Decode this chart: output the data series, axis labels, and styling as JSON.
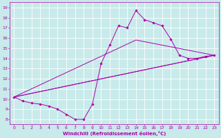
{
  "xlabel": "Windchill (Refroidissement éolien,°C)",
  "background_color": "#c8eaea",
  "grid_color": "#ffffff",
  "line_color": "#aa00aa",
  "xlim": [
    -0.5,
    23.5
  ],
  "ylim": [
    7.5,
    19.5
  ],
  "xticks": [
    0,
    1,
    2,
    3,
    4,
    5,
    6,
    7,
    8,
    9,
    10,
    11,
    12,
    13,
    14,
    15,
    16,
    17,
    18,
    19,
    20,
    21,
    22,
    23
  ],
  "yticks": [
    8,
    9,
    10,
    11,
    12,
    13,
    14,
    15,
    16,
    17,
    18,
    19
  ],
  "series": [
    {
      "x": [
        0,
        1,
        2,
        3,
        4,
        5,
        6,
        7,
        8,
        9,
        10,
        11,
        12,
        13,
        14,
        15,
        16,
        17,
        18,
        19,
        20,
        21,
        22,
        23
      ],
      "y": [
        10.2,
        9.8,
        9.6,
        9.5,
        9.3,
        9.0,
        8.5,
        8.0,
        8.0,
        9.5,
        13.5,
        15.3,
        17.2,
        17.0,
        18.7,
        17.8,
        17.5,
        17.2,
        15.9,
        14.3,
        14.0,
        14.0,
        14.2,
        14.3
      ],
      "marker": "D",
      "markersize": 1.8
    },
    {
      "x": [
        0,
        23
      ],
      "y": [
        10.2,
        14.3
      ],
      "marker": null
    },
    {
      "x": [
        0,
        23
      ],
      "y": [
        10.2,
        14.3
      ],
      "marker": null
    },
    {
      "x": [
        0,
        14,
        23
      ],
      "y": [
        10.2,
        15.8,
        14.3
      ],
      "marker": null
    }
  ],
  "tick_fontsize": 4.5,
  "xlabel_fontsize": 5.0
}
